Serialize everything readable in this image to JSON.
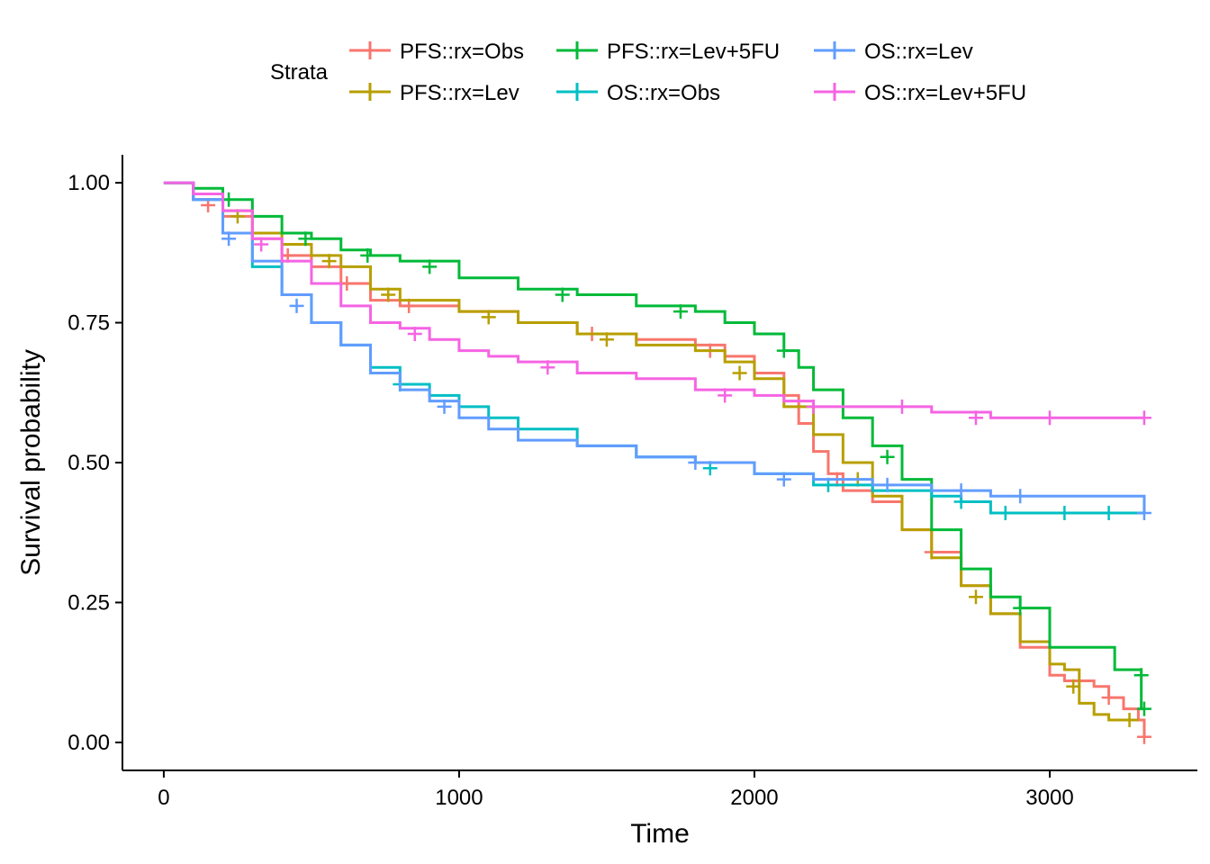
{
  "chart_data": {
    "type": "line",
    "step": true,
    "xlabel": "Time",
    "ylabel": "Survival probability",
    "xlim": [
      -140,
      3500
    ],
    "ylim": [
      -0.05,
      1.05
    ],
    "xticks": [
      0,
      1000,
      2000,
      3000
    ],
    "xtick_labels": [
      "0",
      "1000",
      "2000",
      "3000"
    ],
    "yticks": [
      0,
      0.25,
      0.5,
      0.75,
      1.0
    ],
    "ytick_labels": [
      "0.00",
      "0.25",
      "0.50",
      "0.75",
      "1.00"
    ],
    "grid": false,
    "legend": {
      "title": "Strata",
      "position": "top"
    },
    "series": [
      {
        "name": "PFS::rx=Obs",
        "color": "#F8766D",
        "points": [
          [
            0,
            1.0
          ],
          [
            100,
            0.97
          ],
          [
            200,
            0.94
          ],
          [
            300,
            0.9
          ],
          [
            400,
            0.87
          ],
          [
            500,
            0.85
          ],
          [
            600,
            0.82
          ],
          [
            700,
            0.79
          ],
          [
            800,
            0.78
          ],
          [
            1000,
            0.77
          ],
          [
            1200,
            0.75
          ],
          [
            1400,
            0.73
          ],
          [
            1600,
            0.72
          ],
          [
            1800,
            0.71
          ],
          [
            1900,
            0.69
          ],
          [
            2000,
            0.66
          ],
          [
            2100,
            0.62
          ],
          [
            2150,
            0.57
          ],
          [
            2200,
            0.52
          ],
          [
            2250,
            0.48
          ],
          [
            2300,
            0.45
          ],
          [
            2400,
            0.43
          ],
          [
            2500,
            0.38
          ],
          [
            2600,
            0.34
          ],
          [
            2700,
            0.28
          ],
          [
            2800,
            0.23
          ],
          [
            2900,
            0.17
          ],
          [
            3000,
            0.12
          ],
          [
            3050,
            0.11
          ],
          [
            3150,
            0.1
          ],
          [
            3200,
            0.08
          ],
          [
            3250,
            0.06
          ],
          [
            3300,
            0.04
          ],
          [
            3320,
            0.01
          ]
        ],
        "censor": [
          [
            150,
            0.96
          ],
          [
            420,
            0.87
          ],
          [
            620,
            0.82
          ],
          [
            830,
            0.78
          ],
          [
            1450,
            0.73
          ],
          [
            1850,
            0.7
          ],
          [
            2280,
            0.47
          ],
          [
            2600,
            0.34
          ],
          [
            3200,
            0.08
          ],
          [
            3320,
            0.01
          ]
        ]
      },
      {
        "name": "PFS::rx=Lev",
        "color": "#B79F00",
        "points": [
          [
            0,
            1.0
          ],
          [
            100,
            0.98
          ],
          [
            200,
            0.95
          ],
          [
            300,
            0.91
          ],
          [
            400,
            0.89
          ],
          [
            500,
            0.87
          ],
          [
            600,
            0.85
          ],
          [
            700,
            0.81
          ],
          [
            800,
            0.79
          ],
          [
            1000,
            0.77
          ],
          [
            1200,
            0.75
          ],
          [
            1400,
            0.73
          ],
          [
            1600,
            0.71
          ],
          [
            1800,
            0.7
          ],
          [
            1900,
            0.68
          ],
          [
            2000,
            0.65
          ],
          [
            2100,
            0.6
          ],
          [
            2200,
            0.55
          ],
          [
            2300,
            0.5
          ],
          [
            2400,
            0.44
          ],
          [
            2500,
            0.38
          ],
          [
            2600,
            0.33
          ],
          [
            2700,
            0.28
          ],
          [
            2800,
            0.23
          ],
          [
            2900,
            0.18
          ],
          [
            3000,
            0.14
          ],
          [
            3050,
            0.13
          ],
          [
            3100,
            0.07
          ],
          [
            3150,
            0.05
          ],
          [
            3200,
            0.04
          ],
          [
            3300,
            0.04
          ]
        ],
        "censor": [
          [
            250,
            0.94
          ],
          [
            560,
            0.86
          ],
          [
            760,
            0.8
          ],
          [
            1100,
            0.76
          ],
          [
            1500,
            0.72
          ],
          [
            1950,
            0.66
          ],
          [
            2350,
            0.47
          ],
          [
            2750,
            0.26
          ],
          [
            3080,
            0.1
          ],
          [
            3270,
            0.04
          ]
        ]
      },
      {
        "name": "PFS::rx=Lev+5FU",
        "color": "#00BA38",
        "points": [
          [
            0,
            1.0
          ],
          [
            100,
            0.99
          ],
          [
            200,
            0.97
          ],
          [
            300,
            0.94
          ],
          [
            400,
            0.91
          ],
          [
            500,
            0.9
          ],
          [
            600,
            0.88
          ],
          [
            700,
            0.87
          ],
          [
            800,
            0.86
          ],
          [
            1000,
            0.83
          ],
          [
            1200,
            0.81
          ],
          [
            1400,
            0.8
          ],
          [
            1600,
            0.78
          ],
          [
            1800,
            0.77
          ],
          [
            1900,
            0.75
          ],
          [
            2000,
            0.73
          ],
          [
            2100,
            0.7
          ],
          [
            2150,
            0.67
          ],
          [
            2200,
            0.63
          ],
          [
            2300,
            0.58
          ],
          [
            2400,
            0.53
          ],
          [
            2500,
            0.47
          ],
          [
            2600,
            0.38
          ],
          [
            2700,
            0.31
          ],
          [
            2800,
            0.26
          ],
          [
            2900,
            0.24
          ],
          [
            3000,
            0.17
          ],
          [
            3150,
            0.17
          ],
          [
            3220,
            0.13
          ],
          [
            3300,
            0.13
          ],
          [
            3310,
            0.06
          ],
          [
            3320,
            0.06
          ]
        ],
        "censor": [
          [
            220,
            0.97
          ],
          [
            480,
            0.9
          ],
          [
            690,
            0.87
          ],
          [
            900,
            0.85
          ],
          [
            1350,
            0.8
          ],
          [
            1750,
            0.77
          ],
          [
            2100,
            0.7
          ],
          [
            2450,
            0.51
          ],
          [
            2900,
            0.24
          ],
          [
            3310,
            0.12
          ],
          [
            3320,
            0.06
          ]
        ]
      },
      {
        "name": "OS::rx=Obs",
        "color": "#00BFC4",
        "points": [
          [
            0,
            1.0
          ],
          [
            100,
            0.97
          ],
          [
            200,
            0.91
          ],
          [
            300,
            0.85
          ],
          [
            400,
            0.8
          ],
          [
            500,
            0.75
          ],
          [
            600,
            0.71
          ],
          [
            700,
            0.67
          ],
          [
            800,
            0.64
          ],
          [
            900,
            0.62
          ],
          [
            1000,
            0.6
          ],
          [
            1100,
            0.58
          ],
          [
            1200,
            0.56
          ],
          [
            1400,
            0.53
          ],
          [
            1600,
            0.51
          ],
          [
            1800,
            0.5
          ],
          [
            2000,
            0.48
          ],
          [
            2200,
            0.46
          ],
          [
            2400,
            0.45
          ],
          [
            2600,
            0.44
          ],
          [
            2700,
            0.43
          ],
          [
            2800,
            0.41
          ],
          [
            3000,
            0.41
          ],
          [
            3200,
            0.41
          ],
          [
            3320,
            0.41
          ]
        ],
        "censor": [
          [
            800,
            0.64
          ],
          [
            1200,
            0.56
          ],
          [
            1850,
            0.49
          ],
          [
            2250,
            0.46
          ],
          [
            2700,
            0.43
          ],
          [
            2850,
            0.41
          ],
          [
            3050,
            0.41
          ],
          [
            3200,
            0.41
          ]
        ]
      },
      {
        "name": "OS::rx=Lev",
        "color": "#619CFF",
        "points": [
          [
            0,
            1.0
          ],
          [
            100,
            0.97
          ],
          [
            200,
            0.91
          ],
          [
            300,
            0.86
          ],
          [
            400,
            0.8
          ],
          [
            500,
            0.75
          ],
          [
            600,
            0.71
          ],
          [
            700,
            0.66
          ],
          [
            800,
            0.63
          ],
          [
            900,
            0.61
          ],
          [
            1000,
            0.58
          ],
          [
            1100,
            0.56
          ],
          [
            1200,
            0.54
          ],
          [
            1400,
            0.53
          ],
          [
            1600,
            0.51
          ],
          [
            1800,
            0.5
          ],
          [
            2000,
            0.48
          ],
          [
            2200,
            0.47
          ],
          [
            2400,
            0.46
          ],
          [
            2600,
            0.45
          ],
          [
            2800,
            0.44
          ],
          [
            2900,
            0.44
          ],
          [
            3320,
            0.41
          ]
        ],
        "censor": [
          [
            220,
            0.9
          ],
          [
            450,
            0.78
          ],
          [
            950,
            0.6
          ],
          [
            1800,
            0.5
          ],
          [
            2100,
            0.47
          ],
          [
            2450,
            0.46
          ],
          [
            2700,
            0.45
          ],
          [
            2900,
            0.44
          ],
          [
            3320,
            0.41
          ]
        ]
      },
      {
        "name": "OS::rx=Lev+5FU",
        "color": "#F564E3",
        "points": [
          [
            0,
            1.0
          ],
          [
            100,
            0.98
          ],
          [
            200,
            0.95
          ],
          [
            300,
            0.9
          ],
          [
            400,
            0.86
          ],
          [
            500,
            0.82
          ],
          [
            600,
            0.78
          ],
          [
            700,
            0.75
          ],
          [
            800,
            0.74
          ],
          [
            900,
            0.72
          ],
          [
            1000,
            0.7
          ],
          [
            1100,
            0.69
          ],
          [
            1200,
            0.68
          ],
          [
            1400,
            0.66
          ],
          [
            1600,
            0.65
          ],
          [
            1800,
            0.63
          ],
          [
            2000,
            0.62
          ],
          [
            2100,
            0.61
          ],
          [
            2200,
            0.6
          ],
          [
            2400,
            0.6
          ],
          [
            2600,
            0.59
          ],
          [
            2800,
            0.58
          ],
          [
            3000,
            0.58
          ],
          [
            3320,
            0.58
          ]
        ],
        "censor": [
          [
            330,
            0.89
          ],
          [
            850,
            0.73
          ],
          [
            1300,
            0.67
          ],
          [
            1900,
            0.62
          ],
          [
            2200,
            0.6
          ],
          [
            2500,
            0.6
          ],
          [
            2750,
            0.58
          ],
          [
            3000,
            0.58
          ],
          [
            3320,
            0.58
          ]
        ]
      }
    ]
  }
}
